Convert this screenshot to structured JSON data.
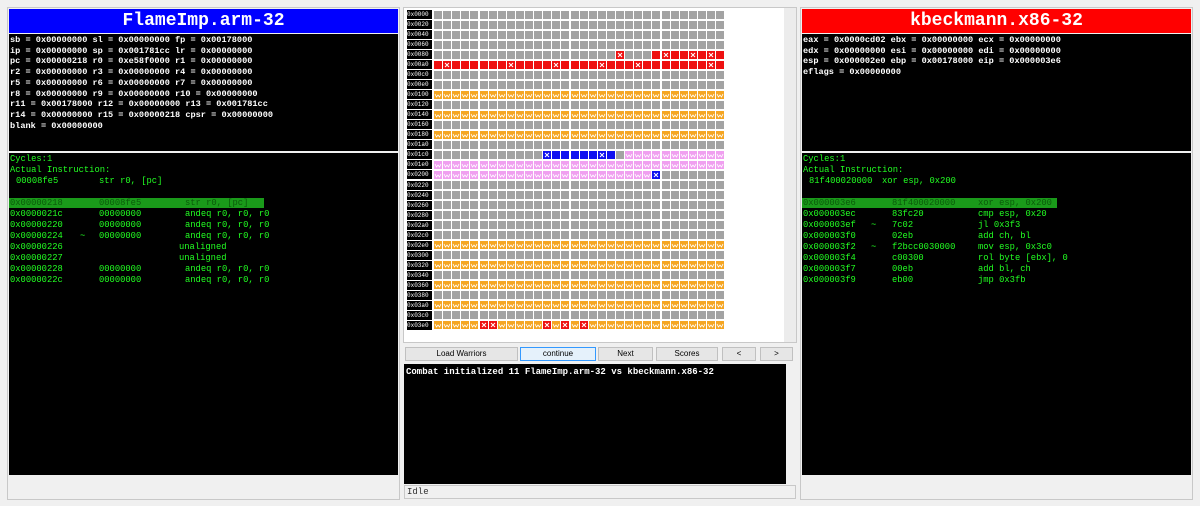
{
  "left": {
    "title": "FlameImp.arm-32",
    "title_color": "#0000ff",
    "registers": [
      "sb = 0x00000000 sl = 0x00000000 fp = 0x00178000",
      "ip = 0x00000000 sp = 0x001781cc lr = 0x00000000",
      "pc = 0x00000218 r0 = 0xe58f0000 r1 = 0x00000000",
      "r2 = 0x00000000 r3 = 0x00000000 r4 = 0x00000000",
      "r5 = 0x00000000 r6 = 0x00000000 r7 = 0x00000000",
      "r8 = 0x00000000 r9 = 0x00000000 r10 = 0x00000000",
      "r11 = 0x00178000 r12 = 0x00000000 r13 = 0x001781cc",
      "r14 = 0x00000000 r15 = 0x00000218 cpsr = 0x00000000",
      "blank = 0x00000000"
    ],
    "cycles": "Cycles:1",
    "actual_label": "Actual Instruction:",
    "actual": {
      "bytes": "00008fe5",
      "asm": "str r0, [pc]"
    },
    "current": 0,
    "code": [
      {
        "addr": "0x00000218",
        "bytes": "00008fe5",
        "asm": "str r0, [pc]"
      },
      {
        "addr": "0x0000021c",
        "bytes": "00000000",
        "asm": "andeq r0, r0, r0"
      },
      {
        "addr": "0x00000220",
        "bytes": "00000000",
        "asm": "andeq r0, r0, r0"
      },
      {
        "addr": "0x00000224",
        "mark": "~",
        "bytes": "00000000",
        "asm": "andeq r0, r0, r0"
      },
      {
        "addr": "0x00000226",
        "asm": "unaligned"
      },
      {
        "addr": "0x00000227",
        "asm": "unaligned"
      },
      {
        "addr": "0x00000228",
        "bytes": "00000000",
        "asm": "andeq r0, r0, r0"
      },
      {
        "addr": "0x0000022c",
        "bytes": "00000000",
        "asm": "andeq r0, r0, r0"
      }
    ]
  },
  "right": {
    "title": "kbeckmann.x86-32",
    "title_color": "#ff0000",
    "registers": [
      "eax = 0x0000cd02 ebx = 0x00000000 ecx = 0x00000000",
      "edx = 0x00000000 esi = 0x00000000 edi = 0x00000000",
      "esp = 0x000002e0 ebp = 0x00178000 eip = 0x000003e6",
      "eflags = 0x00000000"
    ],
    "cycles": "Cycles:1",
    "actual_label": "Actual Instruction:",
    "actual": {
      "bytes": "81f400020000",
      "asm": "xor esp, 0x200"
    },
    "current": 0,
    "code": [
      {
        "addr": "0x000003e6",
        "bytes": "81f400020000",
        "asm": "xor esp, 0x200"
      },
      {
        "addr": "0x000003ec",
        "bytes": "83fc20",
        "asm": "cmp esp, 0x20"
      },
      {
        "addr": "0x000003ef",
        "mark": "~",
        "bytes": "7c02",
        "asm": "jl 0x3f3"
      },
      {
        "addr": "0x000003f0",
        "bytes": "02eb",
        "asm": "add ch, bl"
      },
      {
        "addr": "0x000003f2",
        "mark": "~",
        "bytes": "f2bcc0030000",
        "asm": "mov esp, 0x3c0"
      },
      {
        "addr": "0x000003f4",
        "bytes": "c00300",
        "asm": "rol byte [ebx], 0"
      },
      {
        "addr": "0x000003f7",
        "bytes": "00eb",
        "asm": "add bl, ch"
      },
      {
        "addr": "0x000003f9",
        "bytes": "eb00",
        "asm": "jmp 0x3fb"
      }
    ]
  },
  "memory": {
    "rows": [
      {
        "label": "0x0000",
        "cells": "................................"
      },
      {
        "label": "0x0020",
        "cells": "................................"
      },
      {
        "label": "0x0040",
        "cells": "................................"
      },
      {
        "label": "0x0060",
        "cells": "................................"
      },
      {
        "label": "0x0080",
        "cells": "....................R...rRrrRrRr"
      },
      {
        "label": "0x00a0",
        "cells": "rRrrrrrrRrrrrRrrrrRrrrRrrrrrrrRr"
      },
      {
        "label": "0x00c0",
        "cells": "................................"
      },
      {
        "label": "0x00e0",
        "cells": "................................"
      },
      {
        "label": "0x0100",
        "cells": "oooooooooooooooooooooooooooooooo"
      },
      {
        "label": "0x0120",
        "cells": "................................"
      },
      {
        "label": "0x0140",
        "cells": "oooooooooooooooooooooooooooooooo"
      },
      {
        "label": "0x0160",
        "cells": "................................"
      },
      {
        "label": "0x0180",
        "cells": "oooooooooooooooooooooooooooooooo"
      },
      {
        "label": "0x01a0",
        "cells": "................................"
      },
      {
        "label": "0x01c0",
        "cells": "............BbbbbbBb.ppppppppppp"
      },
      {
        "label": "0x01e0",
        "cells": "pppppppppppppppppppppppppppppppp"
      },
      {
        "label": "0x0200",
        "cells": "ppppppppppppppppppppppppB......."
      },
      {
        "label": "0x0220",
        "cells": "................................"
      },
      {
        "label": "0x0240",
        "cells": "................................"
      },
      {
        "label": "0x0260",
        "cells": "................................"
      },
      {
        "label": "0x0280",
        "cells": "................................"
      },
      {
        "label": "0x02a0",
        "cells": "................................"
      },
      {
        "label": "0x02c0",
        "cells": "................................"
      },
      {
        "label": "0x02e0",
        "cells": "oooooooooooooooooooooooooooooooo"
      },
      {
        "label": "0x0300",
        "cells": "................................"
      },
      {
        "label": "0x0320",
        "cells": "oooooooooooooooooooooooooooooooo"
      },
      {
        "label": "0x0340",
        "cells": "................................"
      },
      {
        "label": "0x0360",
        "cells": "oooooooooooooooooooooooooooooooo"
      },
      {
        "label": "0x0380",
        "cells": "................................"
      },
      {
        "label": "0x03a0",
        "cells": "oooooooooooooooooooooooooooooooo"
      },
      {
        "label": "0x03c0",
        "cells": "................................"
      },
      {
        "label": "0x03e0",
        "cells": "oooooRRoooooRoRoRooooooooooooooo"
      }
    ]
  },
  "buttons": [
    "Load Warriors",
    "continue",
    "Next",
    "Scores",
    "<",
    ">"
  ],
  "active_button": 1,
  "console": "Combat initialized 11 FlameImp.arm-32 vs kbeckmann.x86-32",
  "status": "Idle"
}
